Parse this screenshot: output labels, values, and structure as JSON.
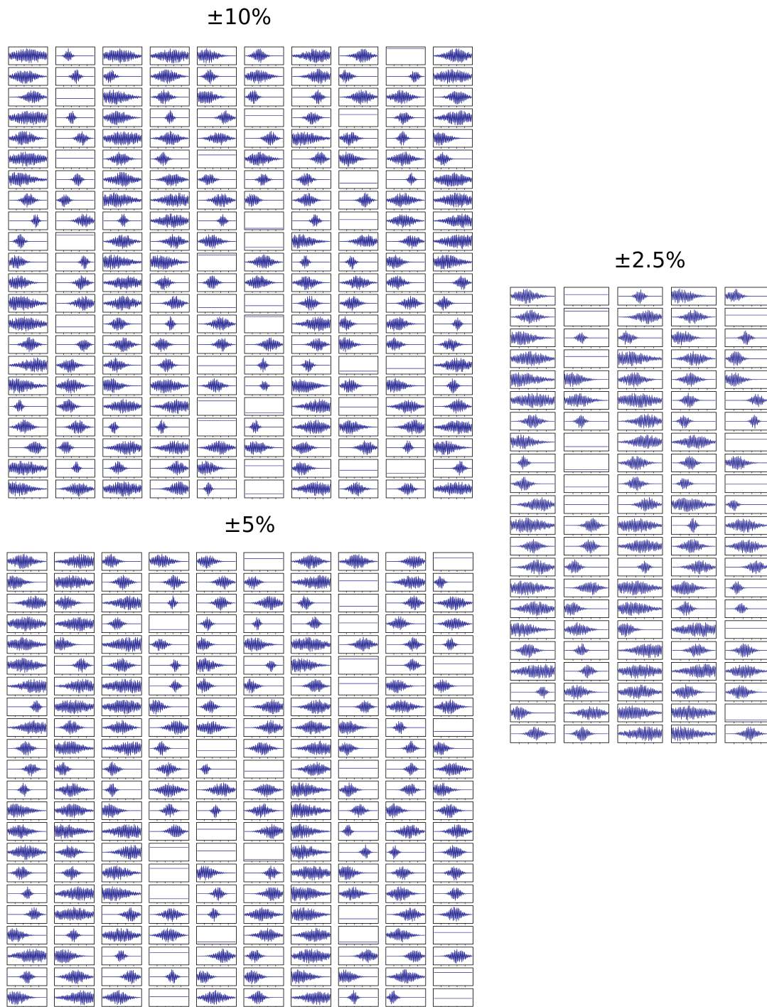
{
  "panels": [
    {
      "title": "±10%"
    },
    {
      "title": "±5%"
    },
    {
      "title": "±2.5%"
    }
  ]
}
